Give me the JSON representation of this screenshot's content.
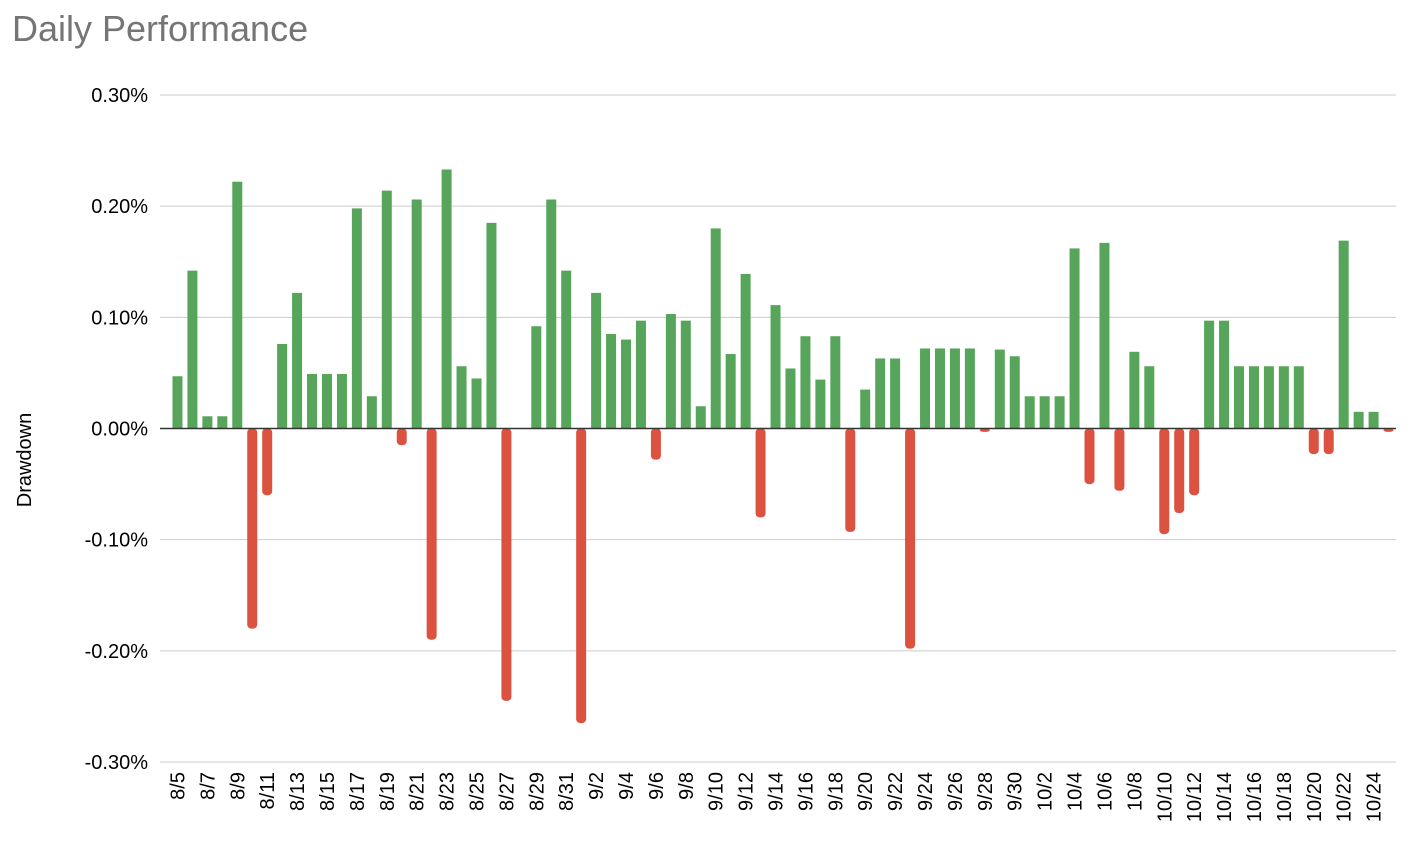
{
  "chart_data": {
    "type": "bar",
    "title": "Daily Performance",
    "ylabel": "Drawdown",
    "xlabel": "",
    "ylim": [
      -0.3,
      0.3
    ],
    "yticks": [
      0.3,
      0.2,
      0.1,
      0.0,
      -0.1,
      -0.2,
      -0.3
    ],
    "ytick_labels": [
      "0.30%",
      "0.20%",
      "0.10%",
      "0.00%",
      "-0.10%",
      "-0.20%",
      "-0.30%"
    ],
    "grid": true,
    "legend": "none",
    "colors": {
      "positive": "#57a55a",
      "negative": "#db5240",
      "grid": "#cccccc",
      "axis": "#333333"
    },
    "categories": [
      "8/5",
      "8/6",
      "8/7",
      "8/8",
      "8/9",
      "8/10",
      "8/11",
      "8/12",
      "8/13",
      "8/14",
      "8/15",
      "8/16",
      "8/17",
      "8/18",
      "8/19",
      "8/20",
      "8/21",
      "8/22",
      "8/23",
      "8/24",
      "8/25",
      "8/26",
      "8/27",
      "8/28",
      "8/29",
      "8/30",
      "8/31",
      "9/1",
      "9/2",
      "9/3",
      "9/4",
      "9/5",
      "9/6",
      "9/7",
      "9/8",
      "9/9",
      "9/10",
      "9/11",
      "9/12",
      "9/13",
      "9/14",
      "9/15",
      "9/16",
      "9/17",
      "9/18",
      "9/19",
      "9/20",
      "9/21",
      "9/22",
      "9/23",
      "9/24",
      "9/25",
      "9/26",
      "9/27",
      "9/28",
      "9/29",
      "9/30",
      "10/1",
      "10/2",
      "10/3",
      "10/4",
      "10/5",
      "10/6",
      "10/7",
      "10/8",
      "10/9",
      "10/10",
      "10/11",
      "10/12",
      "10/13",
      "10/14",
      "10/15",
      "10/16",
      "10/17",
      "10/18",
      "10/19",
      "10/20",
      "10/21",
      "10/22",
      "10/23",
      "10/24",
      "10/25"
    ],
    "tick_labels_shown": [
      "8/5",
      "8/7",
      "8/9",
      "8/11",
      "8/13",
      "8/15",
      "8/17",
      "8/19",
      "8/21",
      "8/23",
      "8/25",
      "8/27",
      "8/29",
      "8/31",
      "9/2",
      "9/4",
      "9/6",
      "9/8",
      "9/10",
      "9/12",
      "9/14",
      "9/16",
      "9/18",
      "9/20",
      "9/22",
      "9/24",
      "9/26",
      "9/28",
      "9/30",
      "10/2",
      "10/4",
      "10/6",
      "10/8",
      "10/10",
      "10/12",
      "10/14",
      "10/16",
      "10/18",
      "10/20",
      "10/22",
      "10/24"
    ],
    "values": [
      0.047,
      0.142,
      0.011,
      0.011,
      0.222,
      -0.18,
      -0.06,
      0.076,
      0.122,
      0.049,
      0.049,
      0.049,
      0.198,
      0.029,
      0.214,
      -0.015,
      0.206,
      -0.19,
      0.233,
      0.056,
      0.045,
      0.185,
      -0.245,
      0.0,
      0.092,
      0.206,
      0.142,
      -0.265,
      0.122,
      0.085,
      0.08,
      0.097,
      -0.028,
      0.103,
      0.097,
      0.02,
      0.18,
      0.067,
      0.139,
      -0.08,
      0.111,
      0.054,
      0.083,
      0.044,
      0.083,
      -0.093,
      0.035,
      0.063,
      0.063,
      -0.198,
      0.072,
      0.072,
      0.072,
      0.072,
      -0.003,
      0.071,
      0.065,
      0.029,
      0.029,
      0.029,
      0.162,
      -0.05,
      0.167,
      -0.056,
      0.069,
      0.056,
      -0.095,
      -0.076,
      -0.06,
      0.097,
      0.097,
      0.056,
      0.056,
      0.056,
      0.056,
      0.056,
      -0.023,
      -0.023,
      0.169,
      0.015,
      0.015,
      -0.003
    ]
  }
}
